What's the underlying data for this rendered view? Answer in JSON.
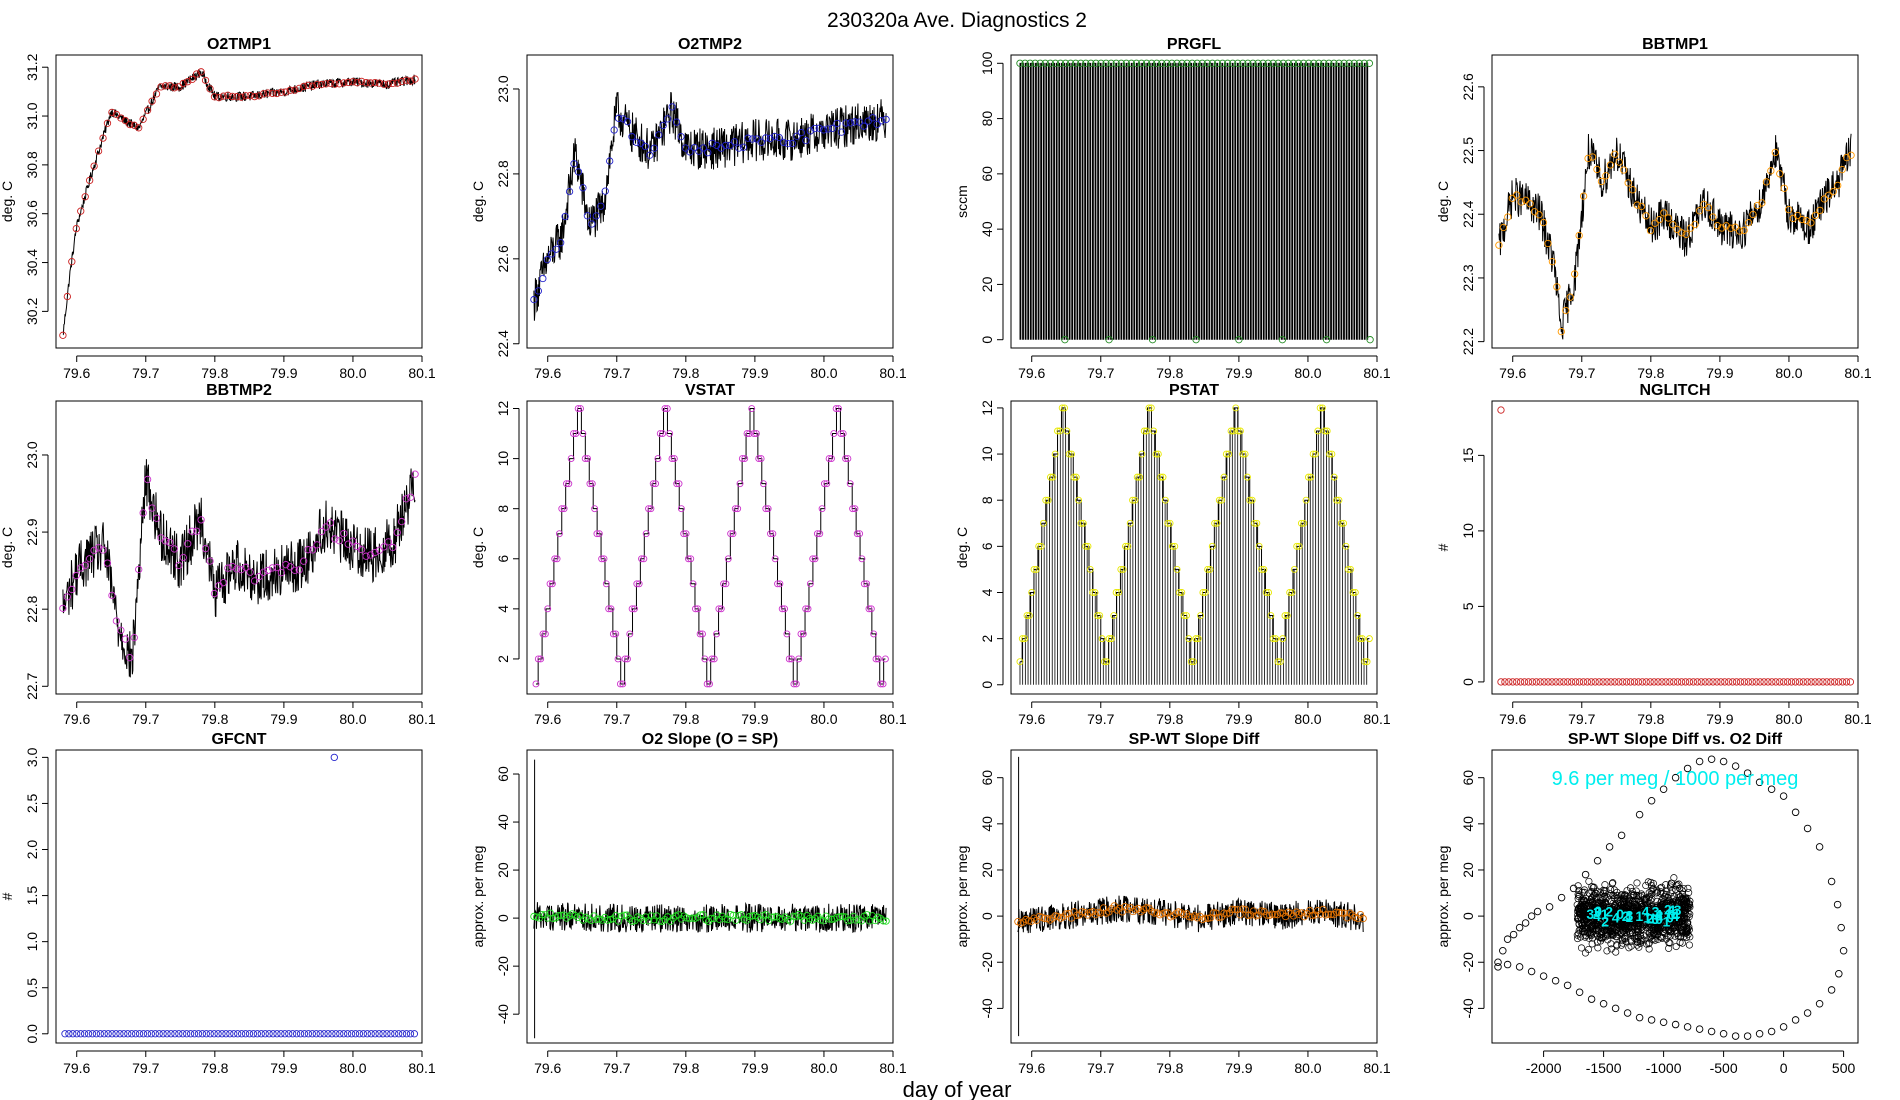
{
  "figure": {
    "title": "230320a   Ave. Diagnostics 2",
    "xlabel": "day of year"
  },
  "colors": {
    "black": "#000000",
    "red": "#cc2222",
    "blue": "#2222cc",
    "green": "#228b22",
    "orange": "#ff9900",
    "violet": "#cc33cc",
    "yellow": "#e8e800",
    "lime": "#22dd22",
    "dark_orange": "#e07000",
    "cyan": "#00eeee"
  },
  "chart_data": [
    {
      "id": "o2tmp1",
      "type": "line",
      "title": "O2TMP1",
      "ylabel": "deg. C",
      "xlim": [
        79.57,
        80.1
      ],
      "ylim": [
        30.05,
        31.25
      ],
      "xticks": [
        79.6,
        79.7,
        79.8,
        79.9,
        80.0,
        80.1
      ],
      "xtick_labels": [
        "79.6",
        "79.7",
        "79.8",
        "79.9",
        "80.0",
        "80.1"
      ],
      "yticks": [
        30.2,
        30.4,
        30.6,
        30.8,
        31.0,
        31.2
      ],
      "ytick_labels": [
        "30.2",
        "30.4",
        "30.6",
        "30.8",
        "31.0",
        "31.2"
      ],
      "marker_color": "red",
      "noise": 0.02,
      "keypoints": {
        "x": [
          79.58,
          79.59,
          79.6,
          79.62,
          79.65,
          79.67,
          79.69,
          79.72,
          79.75,
          79.78,
          79.8,
          79.85,
          79.9,
          79.95,
          80.0,
          80.05,
          80.09
        ],
        "y": [
          30.1,
          30.35,
          30.55,
          30.75,
          31.02,
          30.98,
          30.95,
          31.12,
          31.12,
          31.18,
          31.08,
          31.08,
          31.1,
          31.13,
          31.14,
          31.13,
          31.15
        ]
      }
    },
    {
      "id": "o2tmp2",
      "type": "line",
      "title": "O2TMP2",
      "ylabel": "deg. C",
      "xlim": [
        79.57,
        80.1
      ],
      "ylim": [
        22.39,
        23.08
      ],
      "xticks": [
        79.6,
        79.7,
        79.8,
        79.9,
        80.0,
        80.1
      ],
      "xtick_labels": [
        "79.6",
        "79.7",
        "79.8",
        "79.9",
        "80.0",
        "80.1"
      ],
      "yticks": [
        22.4,
        22.6,
        22.8,
        23.0
      ],
      "ytick_labels": [
        "22.4",
        "22.6",
        "22.8",
        "23.0"
      ],
      "marker_color": "blue",
      "noise": 0.05,
      "keypoints": {
        "x": [
          79.58,
          79.6,
          79.62,
          79.64,
          79.66,
          79.68,
          79.7,
          79.72,
          79.75,
          79.78,
          79.8,
          79.85,
          79.9,
          79.95,
          80.0,
          80.05,
          80.09
        ],
        "y": [
          22.5,
          22.6,
          22.65,
          22.85,
          22.68,
          22.72,
          22.95,
          22.9,
          22.85,
          22.95,
          22.86,
          22.86,
          22.88,
          22.88,
          22.9,
          22.92,
          22.93
        ]
      }
    },
    {
      "id": "prgfl",
      "type": "line",
      "title": "PRGFL",
      "ylabel": "sccm",
      "xlim": [
        79.57,
        80.1
      ],
      "ylim": [
        -3,
        103
      ],
      "xticks": [
        79.6,
        79.7,
        79.8,
        79.9,
        80.0,
        80.1
      ],
      "xtick_labels": [
        "79.6",
        "79.7",
        "79.8",
        "79.9",
        "80.0",
        "80.1"
      ],
      "yticks": [
        0,
        20,
        40,
        60,
        80,
        100
      ],
      "ytick_labels": [
        "0",
        "20",
        "40",
        "60",
        "80",
        "100"
      ],
      "marker_color": "green",
      "pulse_high": 100,
      "pulse_low": 0,
      "pulse_count": 135,
      "drop_x": [
        79.648,
        79.712,
        79.775,
        79.838,
        79.9,
        79.963,
        80.027,
        80.09
      ]
    },
    {
      "id": "bbtmp1",
      "type": "line",
      "title": "BBTMP1",
      "ylabel": "deg. C",
      "xlim": [
        79.57,
        80.1
      ],
      "ylim": [
        22.19,
        22.65
      ],
      "xticks": [
        79.6,
        79.7,
        79.8,
        79.9,
        80.0,
        80.1
      ],
      "xtick_labels": [
        "79.6",
        "79.7",
        "79.8",
        "79.9",
        "80.0",
        "80.1"
      ],
      "yticks": [
        22.2,
        22.3,
        22.4,
        22.5,
        22.6
      ],
      "ytick_labels": [
        "22.2",
        "22.3",
        "22.4",
        "22.5",
        "22.6"
      ],
      "marker_color": "orange",
      "noise": 0.03,
      "keypoints": {
        "x": [
          79.58,
          79.6,
          79.62,
          79.64,
          79.66,
          79.67,
          79.69,
          79.71,
          79.73,
          79.75,
          79.78,
          79.8,
          79.82,
          79.85,
          79.88,
          79.9,
          79.93,
          79.96,
          79.98,
          80.0,
          80.03,
          80.05,
          80.07,
          80.09
        ],
        "y": [
          22.35,
          22.43,
          22.42,
          22.4,
          22.32,
          22.22,
          22.3,
          22.5,
          22.45,
          22.5,
          22.42,
          22.38,
          22.4,
          22.36,
          22.42,
          22.38,
          22.37,
          22.42,
          22.5,
          22.4,
          22.38,
          22.42,
          22.45,
          22.5
        ]
      }
    },
    {
      "id": "bbtmp2",
      "type": "line",
      "title": "BBTMP2",
      "ylabel": "deg. C",
      "xlim": [
        79.57,
        80.1
      ],
      "ylim": [
        22.69,
        23.07
      ],
      "xticks": [
        79.6,
        79.7,
        79.8,
        79.9,
        80.0,
        80.1
      ],
      "xtick_labels": [
        "79.6",
        "79.7",
        "79.8",
        "79.9",
        "80.0",
        "80.1"
      ],
      "yticks": [
        22.7,
        22.8,
        22.9,
        23.0
      ],
      "ytick_labels": [
        "22.7",
        "22.8",
        "22.9",
        "23.0"
      ],
      "marker_color": "violet",
      "noise": 0.035,
      "keypoints": {
        "x": [
          79.58,
          79.6,
          79.62,
          79.64,
          79.66,
          79.68,
          79.7,
          79.72,
          79.75,
          79.78,
          79.8,
          79.83,
          79.86,
          79.9,
          79.93,
          79.96,
          80.0,
          80.03,
          80.06,
          80.09
        ],
        "y": [
          22.8,
          22.85,
          22.87,
          22.88,
          22.78,
          22.73,
          22.97,
          22.9,
          22.86,
          22.92,
          22.82,
          22.86,
          22.84,
          22.85,
          22.86,
          22.91,
          22.88,
          22.87,
          22.89,
          22.97
        ]
      }
    },
    {
      "id": "vstat",
      "type": "line",
      "title": "VSTAT",
      "ylabel": "deg. C",
      "xlim": [
        79.57,
        80.1
      ],
      "ylim": [
        0.6,
        12.3
      ],
      "xticks": [
        79.6,
        79.7,
        79.8,
        79.9,
        80.0,
        80.1
      ],
      "xtick_labels": [
        "79.6",
        "79.7",
        "79.8",
        "79.9",
        "80.0",
        "80.1"
      ],
      "yticks": [
        2,
        4,
        6,
        8,
        10,
        12
      ],
      "ytick_labels": [
        "2",
        "4",
        "6",
        "8",
        "10",
        "12"
      ],
      "marker_color": "violet",
      "cycle_start": 79.583,
      "cycle_period": 0.125,
      "cycles": 4,
      "max_level": 12,
      "min_level": 1
    },
    {
      "id": "pstat",
      "type": "line",
      "title": "PSTAT",
      "ylabel": "deg. C",
      "xlim": [
        79.57,
        80.1
      ],
      "ylim": [
        -0.4,
        12.3
      ],
      "xticks": [
        79.6,
        79.7,
        79.8,
        79.9,
        80.0,
        80.1
      ],
      "xtick_labels": [
        "79.6",
        "79.7",
        "79.8",
        "79.9",
        "80.0",
        "80.1"
      ],
      "yticks": [
        0,
        2,
        4,
        6,
        8,
        10,
        12
      ],
      "ytick_labels": [
        "0",
        "2",
        "4",
        "6",
        "8",
        "10",
        "12"
      ],
      "marker_color": "yellow",
      "cycle_start": 79.583,
      "cycle_period": 0.125,
      "cycles": 4,
      "max_level": 12,
      "min_level": 1
    },
    {
      "id": "nglitch",
      "type": "scatter",
      "title": "NGLITCH",
      "ylabel": "#",
      "xlim": [
        79.57,
        80.1
      ],
      "ylim": [
        -0.8,
        18.6
      ],
      "xticks": [
        79.6,
        79.7,
        79.8,
        79.9,
        80.0,
        80.1
      ],
      "xtick_labels": [
        "79.6",
        "79.7",
        "79.8",
        "79.9",
        "80.0",
        "80.1"
      ],
      "yticks": [
        0,
        5,
        10,
        15
      ],
      "ytick_labels": [
        "0",
        "5",
        "10",
        "15"
      ],
      "marker_color": "red",
      "x_start": 79.583,
      "x_end": 80.089,
      "count": 90,
      "baseline": 0,
      "outliers": [
        {
          "x": 79.583,
          "y": 18
        }
      ]
    },
    {
      "id": "gfcnt",
      "type": "scatter",
      "title": "GFCNT",
      "ylabel": "#",
      "xlim": [
        79.57,
        80.1
      ],
      "ylim": [
        -0.1,
        3.08
      ],
      "xticks": [
        79.6,
        79.7,
        79.8,
        79.9,
        80.0,
        80.1
      ],
      "xtick_labels": [
        "79.6",
        "79.7",
        "79.8",
        "79.9",
        "80.0",
        "80.1"
      ],
      "yticks": [
        0.0,
        0.5,
        1.0,
        1.5,
        2.0,
        2.5,
        3.0
      ],
      "ytick_labels": [
        "0.0",
        "0.5",
        "1.0",
        "1.5",
        "2.0",
        "2.5",
        "3.0"
      ],
      "marker_color": "blue",
      "x_start": 79.583,
      "x_end": 80.089,
      "count": 90,
      "baseline": 0,
      "outliers": [
        {
          "x": 79.973,
          "y": 3
        }
      ]
    },
    {
      "id": "o2slope",
      "type": "line",
      "title": "O2 Slope (O = SP)",
      "ylabel": "approx. per meg",
      "xlim": [
        79.57,
        80.1
      ],
      "ylim": [
        -52,
        70
      ],
      "xticks": [
        79.6,
        79.7,
        79.8,
        79.9,
        80.0,
        80.1
      ],
      "xtick_labels": [
        "79.6",
        "79.7",
        "79.8",
        "79.9",
        "80.0",
        "80.1"
      ],
      "yticks": [
        -40,
        -20,
        0,
        20,
        40,
        60
      ],
      "ytick_labels": [
        "-40",
        "-20",
        "0",
        "20",
        "40",
        "60"
      ],
      "marker_color": "lime",
      "noise": 6,
      "spike": [
        66,
        -50
      ],
      "keypoints": {
        "x": [
          79.58,
          79.7,
          79.8,
          79.9,
          80.0,
          80.09
        ],
        "y": [
          1,
          0,
          0,
          0,
          0,
          0
        ]
      }
    },
    {
      "id": "spwt",
      "type": "line",
      "title": "SP-WT Slope Diff",
      "ylabel": "approx. per meg",
      "xlim": [
        79.57,
        80.1
      ],
      "ylim": [
        -55,
        72
      ],
      "xticks": [
        79.6,
        79.7,
        79.8,
        79.9,
        80.0,
        80.1
      ],
      "xtick_labels": [
        "79.6",
        "79.7",
        "79.8",
        "79.9",
        "80.0",
        "80.1"
      ],
      "yticks": [
        -40,
        -20,
        0,
        20,
        40,
        60
      ],
      "ytick_labels": [
        "-40",
        "-20",
        "0",
        "20",
        "40",
        "60"
      ],
      "marker_color": "dark_orange",
      "noise": 6,
      "spike": [
        69,
        -52
      ],
      "keypoints": {
        "x": [
          79.58,
          79.65,
          79.72,
          79.78,
          79.84,
          79.9,
          79.96,
          80.02,
          80.08
        ],
        "y": [
          -2,
          0,
          3,
          2,
          -1,
          2,
          0,
          2,
          -1
        ]
      }
    },
    {
      "id": "scatter",
      "type": "scatter",
      "title": "SP-WT Slope Diff vs. O2 Diff",
      "ylabel": "approx. per meg",
      "xlim": [
        -2430,
        620
      ],
      "ylim": [
        -55,
        72
      ],
      "xticks": [
        -2000,
        -1500,
        -1000,
        -500,
        0,
        500
      ],
      "xtick_labels": [
        "-2000",
        "-1500",
        "-1000",
        "-500",
        "0",
        "500"
      ],
      "yticks": [
        -40,
        -20,
        0,
        20,
        40,
        60
      ],
      "ytick_labels": [
        "-40",
        "-20",
        "0",
        "20",
        "40",
        "60"
      ],
      "annotation": "9.6 per meg / 1000 per meg",
      "cluster": {
        "x_range": [
          -1720,
          -780
        ],
        "y_center": 0,
        "y_spread": 9
      },
      "ring": {
        "x": [
          -2380,
          -2340,
          -2300,
          -2250,
          -2200,
          -2150,
          -2100,
          -2050,
          -1950,
          -1850,
          -1750,
          -1650,
          -1550,
          -1450,
          -1350,
          -1200,
          -1100,
          -1000,
          -900,
          -800,
          -700,
          -600,
          -500,
          -400,
          -300,
          -200,
          -100,
          0,
          100,
          200,
          300,
          400,
          450,
          480,
          500,
          460,
          400,
          300,
          200,
          100,
          0,
          -100,
          -200,
          -300,
          -400,
          -500,
          -600,
          -700,
          -800,
          -900,
          -1000,
          -1100,
          -1200,
          -1300,
          -1400,
          -1500,
          -1600,
          -1700,
          -1800,
          -1900,
          -2000,
          -2100,
          -2200,
          -2300,
          -2380
        ],
        "y": [
          -20,
          -15,
          -10,
          -8,
          -5,
          -3,
          0,
          2,
          4,
          8,
          12,
          18,
          24,
          30,
          35,
          44,
          50,
          55,
          60,
          64,
          67,
          68,
          67,
          65,
          62,
          58,
          55,
          52,
          45,
          38,
          30,
          15,
          5,
          -5,
          -15,
          -25,
          -32,
          -38,
          -42,
          -45,
          -48,
          -50,
          -51,
          -52,
          -52,
          -51,
          -50,
          -49,
          -48,
          -47,
          -46,
          -45,
          -44,
          -42,
          -40,
          -38,
          -36,
          -33,
          -30,
          -28,
          -26,
          -24,
          -22,
          -21,
          -22
        ]
      }
    }
  ]
}
